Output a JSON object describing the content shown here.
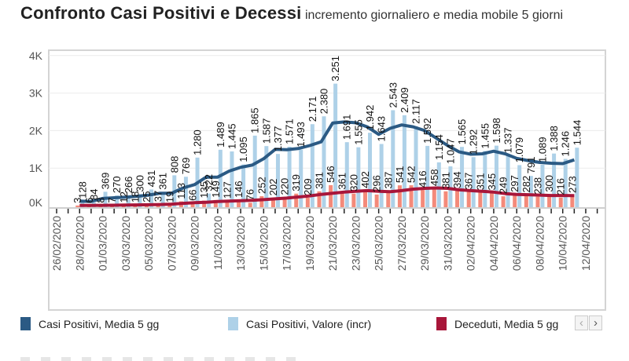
{
  "title": {
    "main": "Confronto Casi Positivi e Decessi",
    "sub": "incremento giornaliero e media mobile 5 giorni"
  },
  "colors": {
    "pos_avg": "#2b5a84",
    "pos_bar": "#aed1e8",
    "death_avg": "#a8163a",
    "death_bar": "#f48a7a"
  },
  "legend": {
    "items": [
      {
        "label": "Casi Positivi, Media 5 gg",
        "color": "#2b5a84"
      },
      {
        "label": "Casi Positivi, Valore (incr)",
        "color": "#aed1e8"
      },
      {
        "label": "Deceduti, Media 5 gg",
        "color": "#a8163a"
      }
    ],
    "prev_icon": "‹",
    "next_icon": "›"
  },
  "chart_data": {
    "type": "bar",
    "title": "Confronto Casi Positivi e Decessi",
    "subtitle": "incremento giornaliero e media mobile 5 giorni",
    "xlabel": "",
    "ylabel": "",
    "ylim": [
      0,
      4000
    ],
    "yticks": [
      "0K",
      "1K",
      "2K",
      "3K",
      "4K"
    ],
    "grid": true,
    "legend_position": "bottom",
    "x_tick_labels": [
      "26/02/2020",
      "28/02/2020",
      "01/03/2020",
      "03/03/2020",
      "05/03/2020",
      "07/03/2020",
      "09/03/2020",
      "11/03/2020",
      "13/03/2020",
      "15/03/2020",
      "17/03/2020",
      "19/03/2020",
      "21/03/2020",
      "23/03/2020",
      "25/03/2020",
      "27/03/2020",
      "29/03/2020",
      "31/03/2020",
      "02/04/2020",
      "04/04/2020",
      "06/04/2020",
      "08/04/2020",
      "10/04/2020",
      "12/04/2020"
    ],
    "first_date": "28/02/2020",
    "series": [
      {
        "name": "Casi Positivi, Valore (incr)",
        "kind": "bar",
        "values": [
          128,
          84,
          369,
          270,
          266,
          300,
          431,
          361,
          808,
          769,
          1280,
          322,
          1489,
          1445,
          1095,
          1865,
          1587,
          1377,
          1571,
          1493,
          2171,
          2380,
          3251,
          1691,
          1555,
          1942,
          1643,
          2543,
          2409,
          2117,
          1592,
          1154,
          1047,
          1565,
          1292,
          1455,
          1598,
          1337,
          1079,
          791,
          1089,
          1388,
          1246,
          1544
        ]
      },
      {
        "name": "Deceduti, Valore (incr)",
        "kind": "bar",
        "values": [
          3,
          6,
          8,
          7,
          12,
          18,
          25,
          37,
          19,
          113,
          66,
          135,
          149,
          127,
          146,
          76,
          252,
          202,
          220,
          319,
          209,
          381,
          546,
          361,
          320,
          402,
          296,
          387,
          541,
          542,
          416,
          458,
          381,
          394,
          367,
          351,
          345,
          249,
          297,
          282,
          238,
          300,
          216,
          273
        ]
      },
      {
        "name": "Casi Positivi, Media 5 gg",
        "kind": "line",
        "values": [
          120,
          110,
          190,
          210,
          225,
          250,
          280,
          330,
          330,
          470,
          560,
          760,
          760,
          920,
          1020,
          1080,
          1250,
          1500,
          1490,
          1520,
          1600,
          1700,
          2200,
          2230,
          2210,
          2100,
          1900,
          2060,
          2150,
          2100,
          2000,
          1800,
          1600,
          1430,
          1370,
          1380,
          1450,
          1380,
          1260,
          1200,
          1150,
          1130,
          1120,
          1220
        ]
      },
      {
        "name": "Deceduti, Media 5 gg",
        "kind": "line",
        "values": [
          5,
          6,
          8,
          10,
          14,
          18,
          22,
          30,
          40,
          60,
          80,
          90,
          110,
          120,
          130,
          140,
          160,
          180,
          200,
          230,
          260,
          300,
          330,
          360,
          380,
          400,
          380,
          370,
          400,
          440,
          460,
          470,
          460,
          420,
          400,
          380,
          360,
          320,
          300,
          290,
          280,
          270,
          270,
          265
        ]
      }
    ]
  }
}
